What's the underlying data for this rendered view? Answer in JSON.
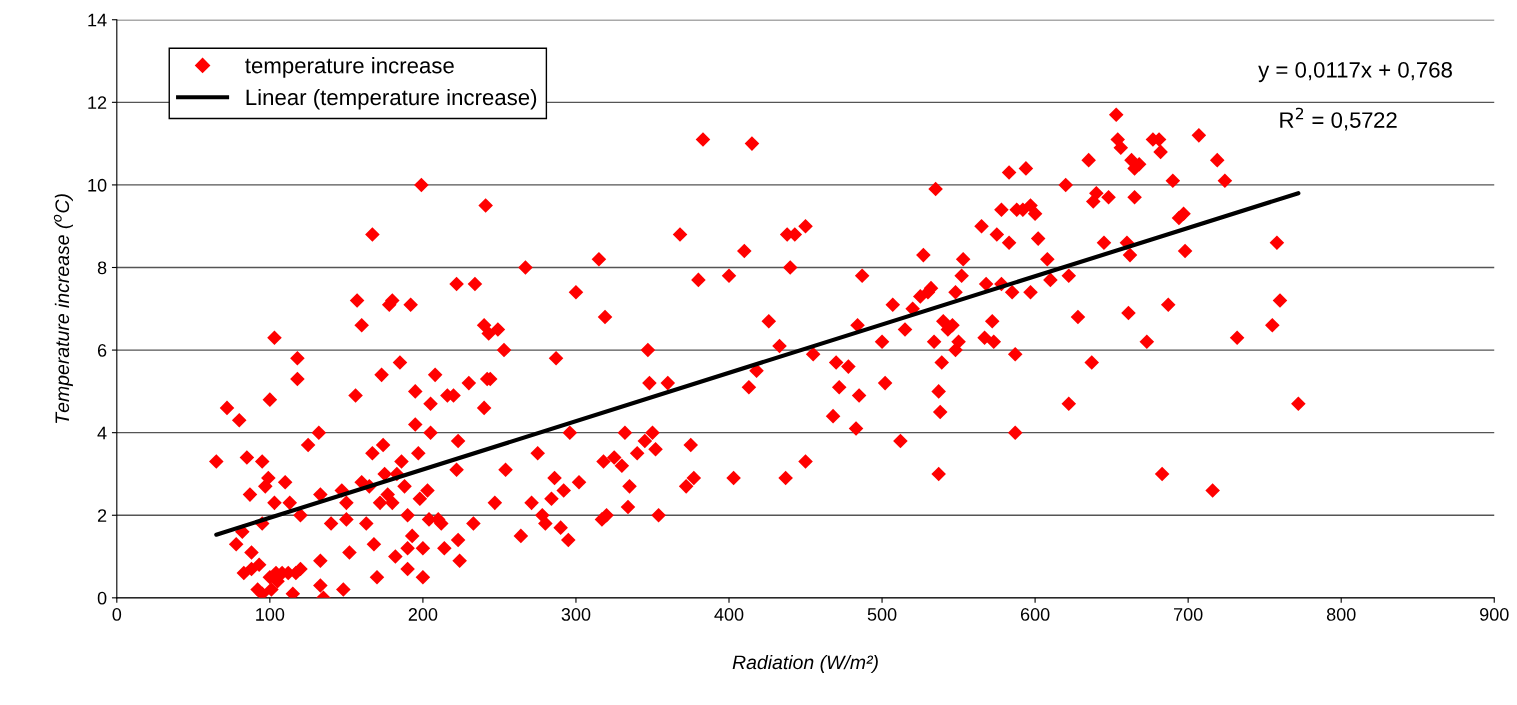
{
  "chart_data": {
    "type": "scatter",
    "xlabel": "Radiation (W/m²)",
    "ylabel": "Temperature increase ($^{o}$C)",
    "xlim": [
      0,
      900
    ],
    "xticks": [
      0,
      100,
      200,
      300,
      400,
      500,
      600,
      700,
      800,
      900
    ],
    "ylim": [
      0,
      14
    ],
    "yticks": [
      0,
      2,
      4,
      6,
      8,
      10,
      12,
      14
    ],
    "grid": "y",
    "legend": "top left",
    "marker": "diamond",
    "annotations": [
      "y = 0,0117x + 0,768",
      "R$^{2}$ = 0,5722"
    ],
    "series": [
      {
        "name": "temperature increase",
        "color": "#ff0000",
        "x": [
          65,
          72,
          80,
          78,
          82,
          83,
          85,
          87,
          88,
          88,
          92,
          93,
          95,
          95,
          95,
          97,
          99,
          100,
          100,
          101,
          103,
          103,
          104,
          105,
          108,
          110,
          112,
          113,
          115,
          117,
          118,
          118,
          120,
          120,
          125,
          132,
          133,
          133,
          135,
          133,
          140,
          147,
          148,
          150,
          150,
          152,
          156,
          157,
          160,
          160,
          163,
          165,
          167,
          167,
          168,
          170,
          172,
          173,
          174,
          175,
          177,
          178,
          180,
          180,
          182,
          183,
          185,
          186,
          188,
          190,
          190,
          190,
          192,
          193,
          195,
          195,
          197,
          198,
          199,
          200,
          200,
          203,
          204,
          205,
          205,
          208,
          210,
          212,
          214,
          216,
          220,
          222,
          222,
          223,
          224,
          223,
          230,
          233,
          234,
          240,
          240,
          241,
          242,
          243,
          244,
          247,
          249,
          253,
          254,
          264,
          267,
          271,
          275,
          278,
          280,
          284,
          286,
          287,
          290,
          292,
          295,
          296,
          300,
          302,
          315,
          317,
          318,
          319,
          320,
          325,
          330,
          332,
          335,
          334,
          340,
          345,
          347,
          348,
          350,
          352,
          354,
          360,
          368,
          372,
          375,
          377,
          380,
          383,
          400,
          403,
          410,
          413,
          415,
          418,
          426,
          433,
          437,
          438,
          440,
          443,
          450,
          450,
          455,
          468,
          470,
          472,
          478,
          483,
          484,
          485,
          487,
          500,
          502,
          507,
          512,
          515,
          520,
          525,
          527,
          530,
          532,
          534,
          535,
          537,
          537,
          538,
          539,
          540,
          543,
          546,
          548,
          548,
          550,
          552,
          553,
          565,
          567,
          568,
          572,
          573,
          575,
          578,
          578,
          583,
          583,
          585,
          587,
          588,
          587,
          592,
          594,
          597,
          597,
          600,
          602,
          608,
          610,
          620,
          622,
          622,
          628,
          635,
          637,
          638,
          640,
          645,
          648,
          653,
          654,
          656,
          660,
          661,
          662,
          663,
          665,
          665,
          668,
          673,
          677,
          681,
          682,
          683,
          687,
          690,
          694,
          697,
          698,
          707,
          716,
          719,
          724,
          732,
          755,
          758,
          760,
          772
        ],
        "values": [
          3.3,
          4.6,
          4.3,
          1.3,
          1.6,
          0.6,
          3.4,
          2.5,
          1.1,
          0.7,
          0.2,
          0.8,
          0.1,
          1.8,
          3.3,
          2.7,
          2.9,
          4.8,
          0.5,
          0.2,
          6.3,
          2.3,
          0.6,
          0.4,
          0.6,
          2.8,
          0.6,
          2.3,
          0.1,
          0.6,
          5.8,
          5.3,
          2.0,
          0.7,
          3.7,
          4.0,
          2.5,
          0.3,
          0.0,
          0.9,
          1.8,
          2.6,
          0.2,
          2.3,
          1.9,
          1.1,
          4.9,
          7.2,
          6.6,
          2.8,
          1.8,
          2.7,
          3.5,
          8.8,
          1.3,
          0.5,
          2.3,
          5.4,
          3.7,
          3.0,
          2.5,
          7.1,
          7.2,
          2.3,
          1.0,
          3.0,
          5.7,
          3.3,
          2.7,
          1.2,
          0.7,
          2.0,
          7.1,
          1.5,
          4.2,
          5.0,
          3.5,
          2.4,
          10.0,
          1.2,
          0.5,
          2.6,
          1.9,
          4.0,
          4.7,
          5.4,
          1.9,
          1.8,
          1.2,
          4.9,
          4.9,
          7.6,
          3.1,
          1.4,
          0.9,
          3.8,
          5.2,
          1.8,
          7.6,
          4.6,
          6.6,
          9.5,
          5.3,
          6.4,
          5.3,
          2.3,
          6.5,
          6.0,
          3.1,
          1.5,
          8.0,
          2.3,
          3.5,
          2.0,
          1.8,
          2.4,
          2.9,
          5.8,
          1.7,
          2.6,
          1.4,
          4.0,
          7.4,
          2.8,
          8.2,
          1.9,
          3.3,
          6.8,
          2.0,
          3.4,
          3.2,
          4.0,
          2.7,
          2.2,
          3.5,
          3.8,
          6.0,
          5.2,
          4.0,
          3.6,
          2.0,
          5.2,
          8.8,
          2.7,
          3.7,
          2.9,
          7.7,
          11.1,
          7.8,
          2.9,
          8.4,
          5.1,
          11.0,
          5.5,
          6.7,
          6.1,
          2.9,
          8.8,
          8.0,
          8.8,
          9.0,
          3.3,
          5.9,
          4.4,
          5.7,
          5.1,
          5.6,
          4.1,
          6.6,
          4.9,
          7.8,
          6.2,
          5.2,
          7.1,
          3.8,
          6.5,
          7.0,
          7.3,
          8.3,
          7.4,
          7.5,
          6.2,
          9.9,
          3.0,
          5.0,
          4.5,
          5.7,
          6.7,
          6.5,
          6.6,
          7.4,
          6.0,
          6.2,
          7.8,
          8.2,
          9.0,
          6.3,
          7.6,
          6.7,
          6.2,
          8.8,
          9.4,
          7.6,
          8.6,
          10.3,
          7.4,
          5.9,
          9.4,
          4.0,
          9.4,
          10.4,
          9.5,
          7.4,
          9.3,
          8.7,
          8.2,
          7.7,
          10.0,
          4.7,
          7.8,
          6.8,
          10.6,
          5.7,
          9.6,
          9.8,
          8.6,
          9.7,
          11.7,
          11.1,
          10.9,
          8.6,
          6.9,
          8.3,
          10.6,
          9.7,
          10.4,
          10.5,
          6.2,
          11.1,
          11.1,
          10.8,
          3.0,
          7.1,
          10.1,
          9.2,
          9.3,
          8.4,
          11.2,
          2.6,
          10.6,
          10.1,
          6.3,
          6.6,
          8.6,
          7.2,
          4.7
        ]
      },
      {
        "name": "Linear (temperature increase)",
        "type": "line",
        "color": "#000000",
        "line_style": "solid",
        "marker": "none",
        "x": [
          65,
          772
        ],
        "values": [
          1.53,
          9.8
        ]
      }
    ]
  }
}
